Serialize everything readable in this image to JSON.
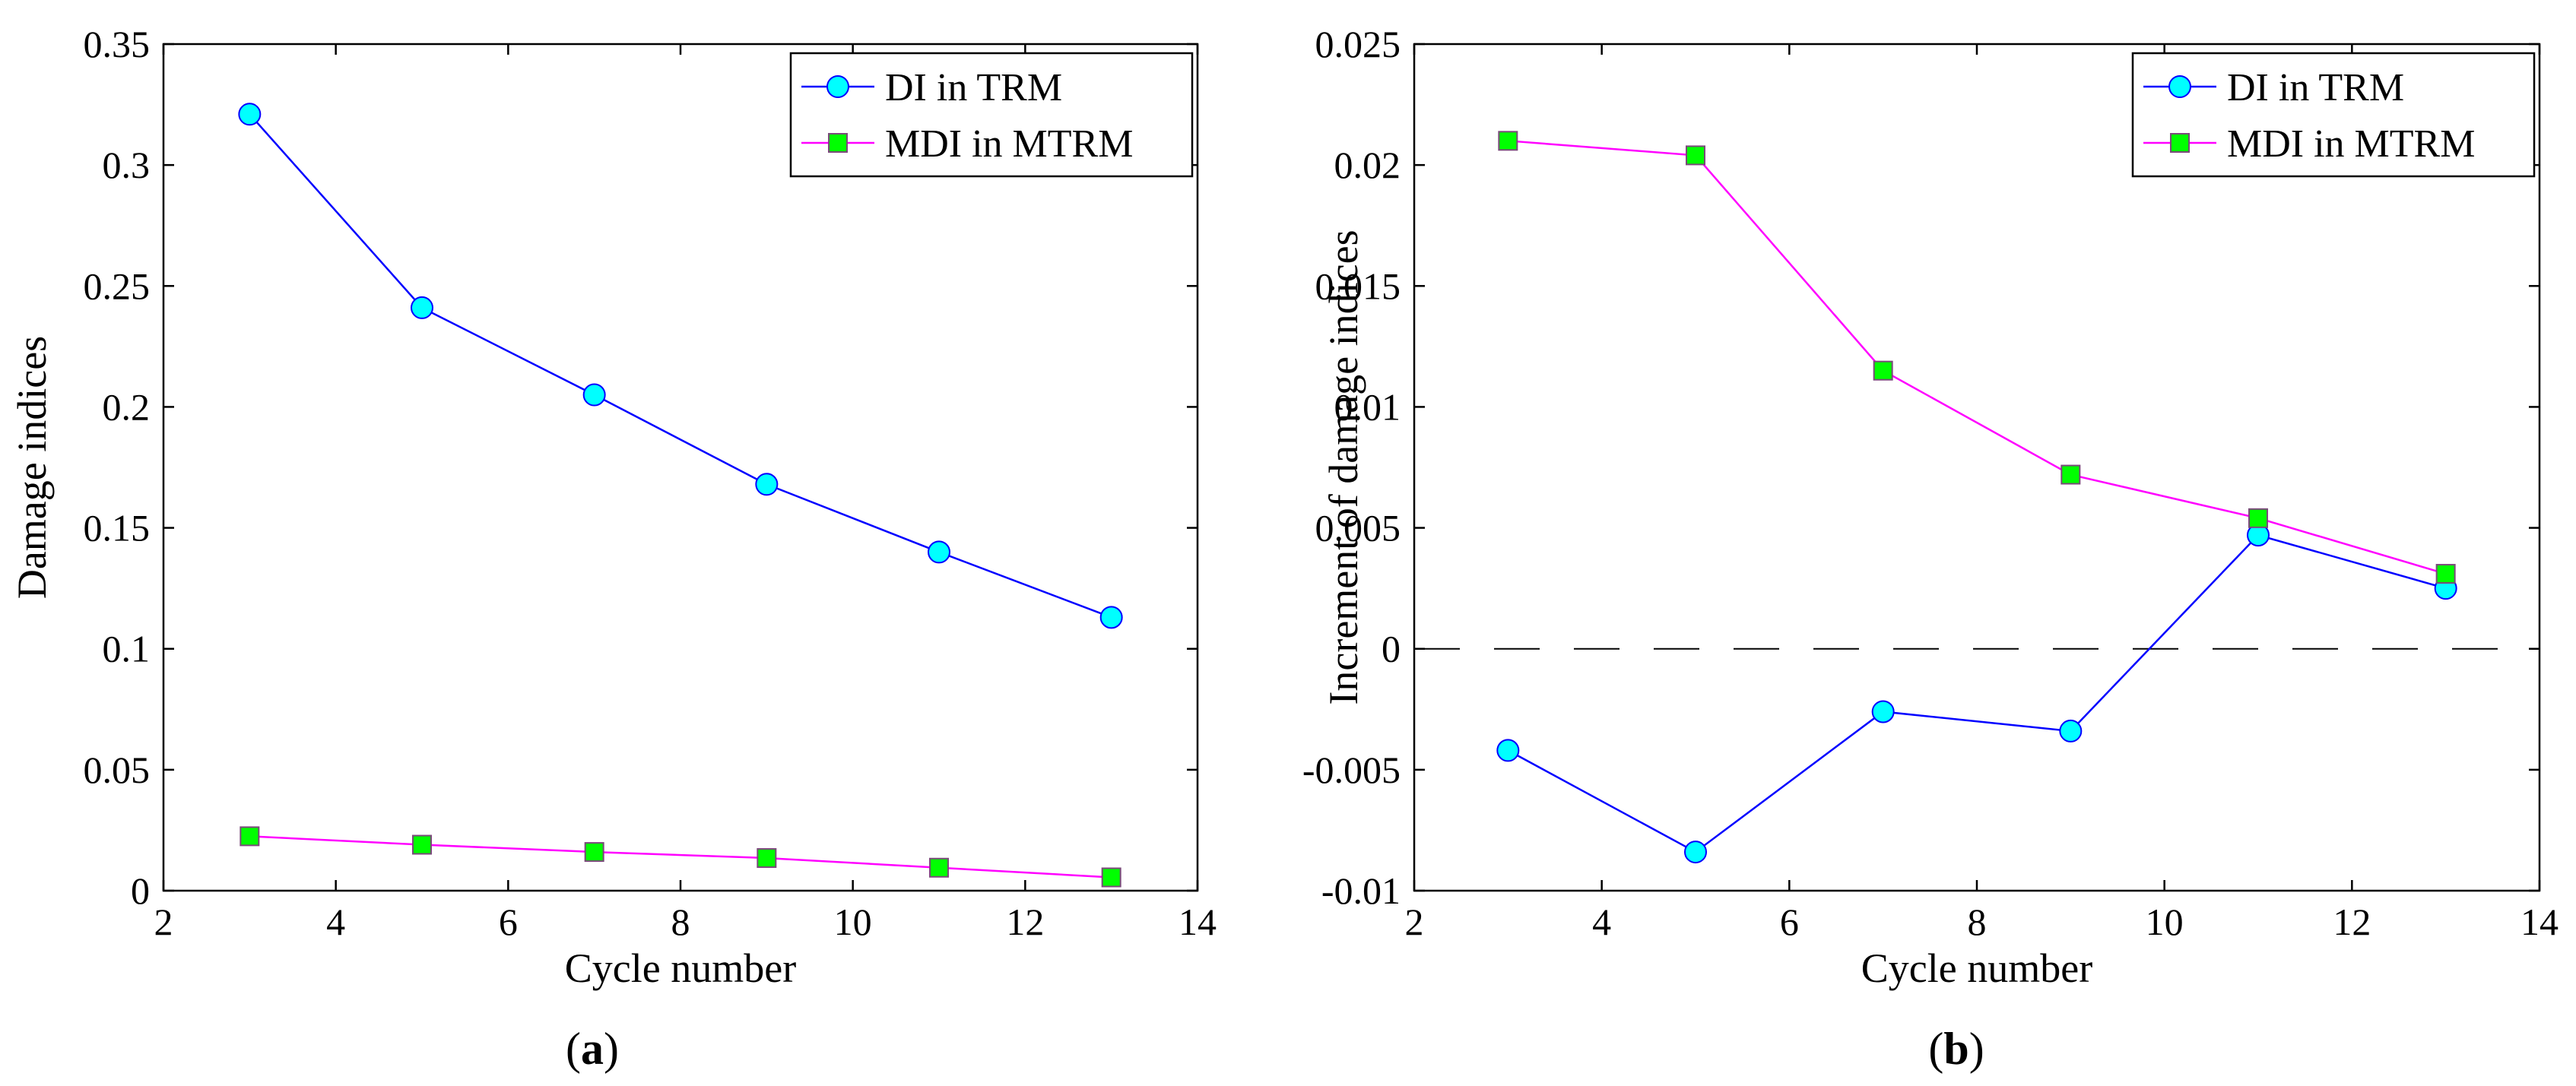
{
  "chart_data": [
    {
      "type": "line",
      "panel_label": "a",
      "title": "",
      "xlabel": "Cycle number",
      "ylabel": "Damage indices",
      "xlim": [
        2,
        14
      ],
      "ylim": [
        0,
        0.35
      ],
      "xticks": [
        2,
        4,
        6,
        8,
        10,
        12,
        14
      ],
      "yticks": [
        0,
        0.05,
        0.1,
        0.15,
        0.2,
        0.25,
        0.3,
        0.35
      ],
      "xtick_labels": [
        "2",
        "4",
        "6",
        "8",
        "10",
        "12",
        "14"
      ],
      "ytick_labels": [
        "0",
        "0.05",
        "0.1",
        "0.15",
        "0.2",
        "0.25",
        "0.3",
        "0.35"
      ],
      "grid": false,
      "legend_position": "top-right",
      "x": [
        3,
        5,
        7,
        9,
        11,
        13
      ],
      "series": [
        {
          "name": "DI in TRM",
          "values": [
            0.321,
            0.241,
            0.205,
            0.168,
            0.14,
            0.113
          ],
          "line_color": "#0000ff",
          "marker": "circle",
          "marker_color": "#00ffff"
        },
        {
          "name": "MDI in MTRM",
          "values": [
            0.0225,
            0.019,
            0.016,
            0.0135,
            0.0095,
            0.0055
          ],
          "line_color": "#ff00ff",
          "marker": "square",
          "marker_color": "#00ff00"
        }
      ]
    },
    {
      "type": "line",
      "panel_label": "b",
      "title": "",
      "xlabel": "Cycle number",
      "ylabel": "Increment of damage indices",
      "xlim": [
        2,
        14
      ],
      "ylim": [
        -0.01,
        0.025
      ],
      "xticks": [
        2,
        4,
        6,
        8,
        10,
        12,
        14
      ],
      "yticks": [
        -0.01,
        -0.005,
        0,
        0.005,
        0.01,
        0.015,
        0.02,
        0.025
      ],
      "xtick_labels": [
        "2",
        "4",
        "6",
        "8",
        "10",
        "12",
        "14"
      ],
      "ytick_labels": [
        "-0.01",
        "-0.005",
        "0",
        "0.005",
        "0.01",
        "0.015",
        "0.02",
        "0.025"
      ],
      "grid": false,
      "legend_position": "top-right",
      "reference_line": {
        "y": 0,
        "style": "dashed",
        "color": "#000000"
      },
      "x": [
        3,
        5,
        7,
        9,
        11,
        13
      ],
      "series": [
        {
          "name": "DI in TRM",
          "values": [
            -0.0042,
            -0.0084,
            -0.0026,
            -0.0034,
            0.0047,
            0.0025
          ],
          "line_color": "#0000ff",
          "marker": "circle",
          "marker_color": "#00ffff"
        },
        {
          "name": "MDI in MTRM",
          "values": [
            0.021,
            0.0204,
            0.0115,
            0.0072,
            0.0054,
            0.0031
          ],
          "line_color": "#ff00ff",
          "marker": "square",
          "marker_color": "#00ff00"
        }
      ]
    }
  ]
}
